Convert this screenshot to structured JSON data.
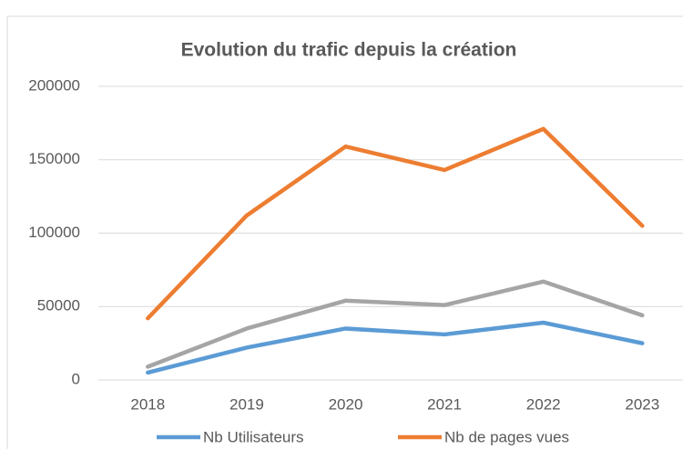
{
  "chart_data": {
    "type": "line",
    "title": "Evolution du trafic depuis la création",
    "categories": [
      "2018",
      "2019",
      "2020",
      "2021",
      "2022",
      "2023"
    ],
    "series": [
      {
        "name": "Nb Utilisateurs",
        "color": "#5b9bd5",
        "values": [
          5000,
          22000,
          35000,
          31000,
          39000,
          25000
        ]
      },
      {
        "name": "Nb de pages vues",
        "color": "#ed7d31",
        "values": [
          42000,
          112000,
          159000,
          143000,
          171000,
          105000
        ]
      },
      {
        "color": "#a5a5a5",
        "values": [
          9000,
          35000,
          54000,
          51000,
          67000,
          44000
        ]
      }
    ],
    "ylim": [
      0,
      200000
    ],
    "yticks": [
      0,
      50000,
      100000,
      150000,
      200000
    ],
    "grid": true
  }
}
